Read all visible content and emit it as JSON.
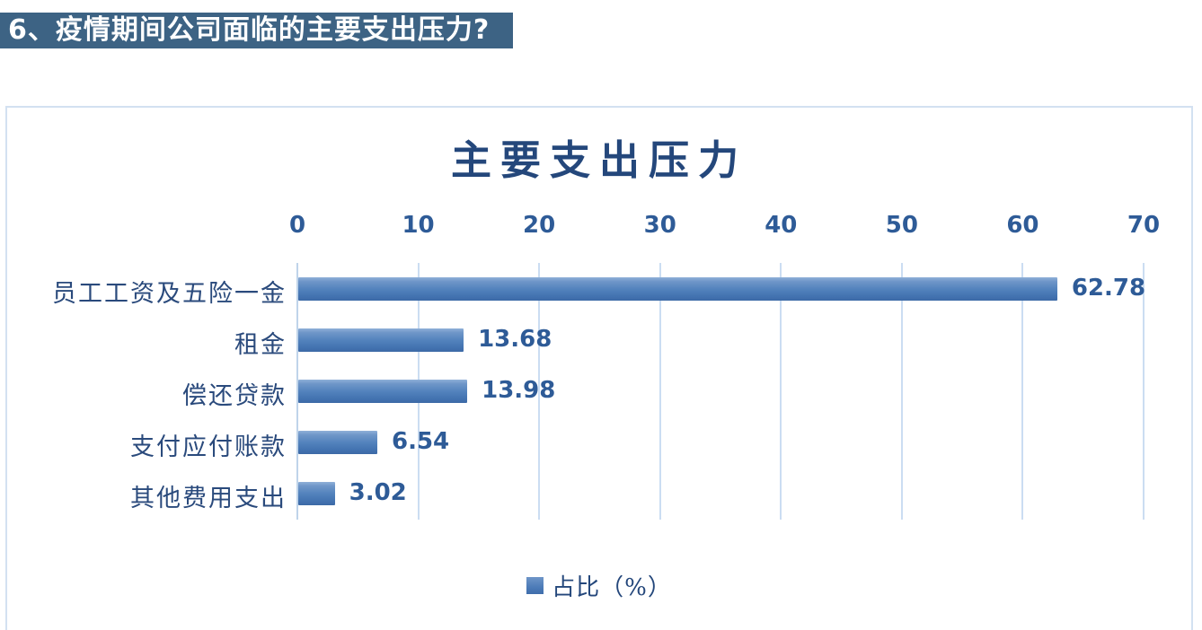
{
  "heading": {
    "text": "6、疫情期间公司面临的主要支出压力?",
    "bg_color": "#3D6384",
    "text_color": "#FFFFFF"
  },
  "chart": {
    "title": "主要支出压力",
    "legend_label": "占比（%）",
    "colors": {
      "bar_fill_top": "#8FB0D8",
      "bar_fill_mid": "#5383BD",
      "bar_fill_bottom": "#3C69A6",
      "gridline": "#CBDDF2",
      "border": "#D3E1F1",
      "number_text": "#2E5B97",
      "category_text": "#2A4A7C",
      "title_text": "#24477B"
    }
  },
  "chart_data": {
    "type": "bar",
    "orientation": "horizontal",
    "title": "主要支出压力",
    "series_name": "占比（%）",
    "categories": [
      "员工工资及五险一金",
      "租金",
      "偿还贷款",
      "支付应付账款",
      "其他费用支出"
    ],
    "values": [
      62.78,
      13.68,
      13.98,
      6.54,
      3.02
    ],
    "value_labels": [
      "62.78",
      "13.68",
      "13.98",
      "6.54",
      "3.02"
    ],
    "xlim": [
      0,
      70
    ],
    "xticks": [
      0,
      10,
      20,
      30,
      40,
      50,
      60,
      70
    ],
    "grid": true,
    "axis_position": "top",
    "legend_position": "bottom",
    "value_labels_shown": true
  }
}
